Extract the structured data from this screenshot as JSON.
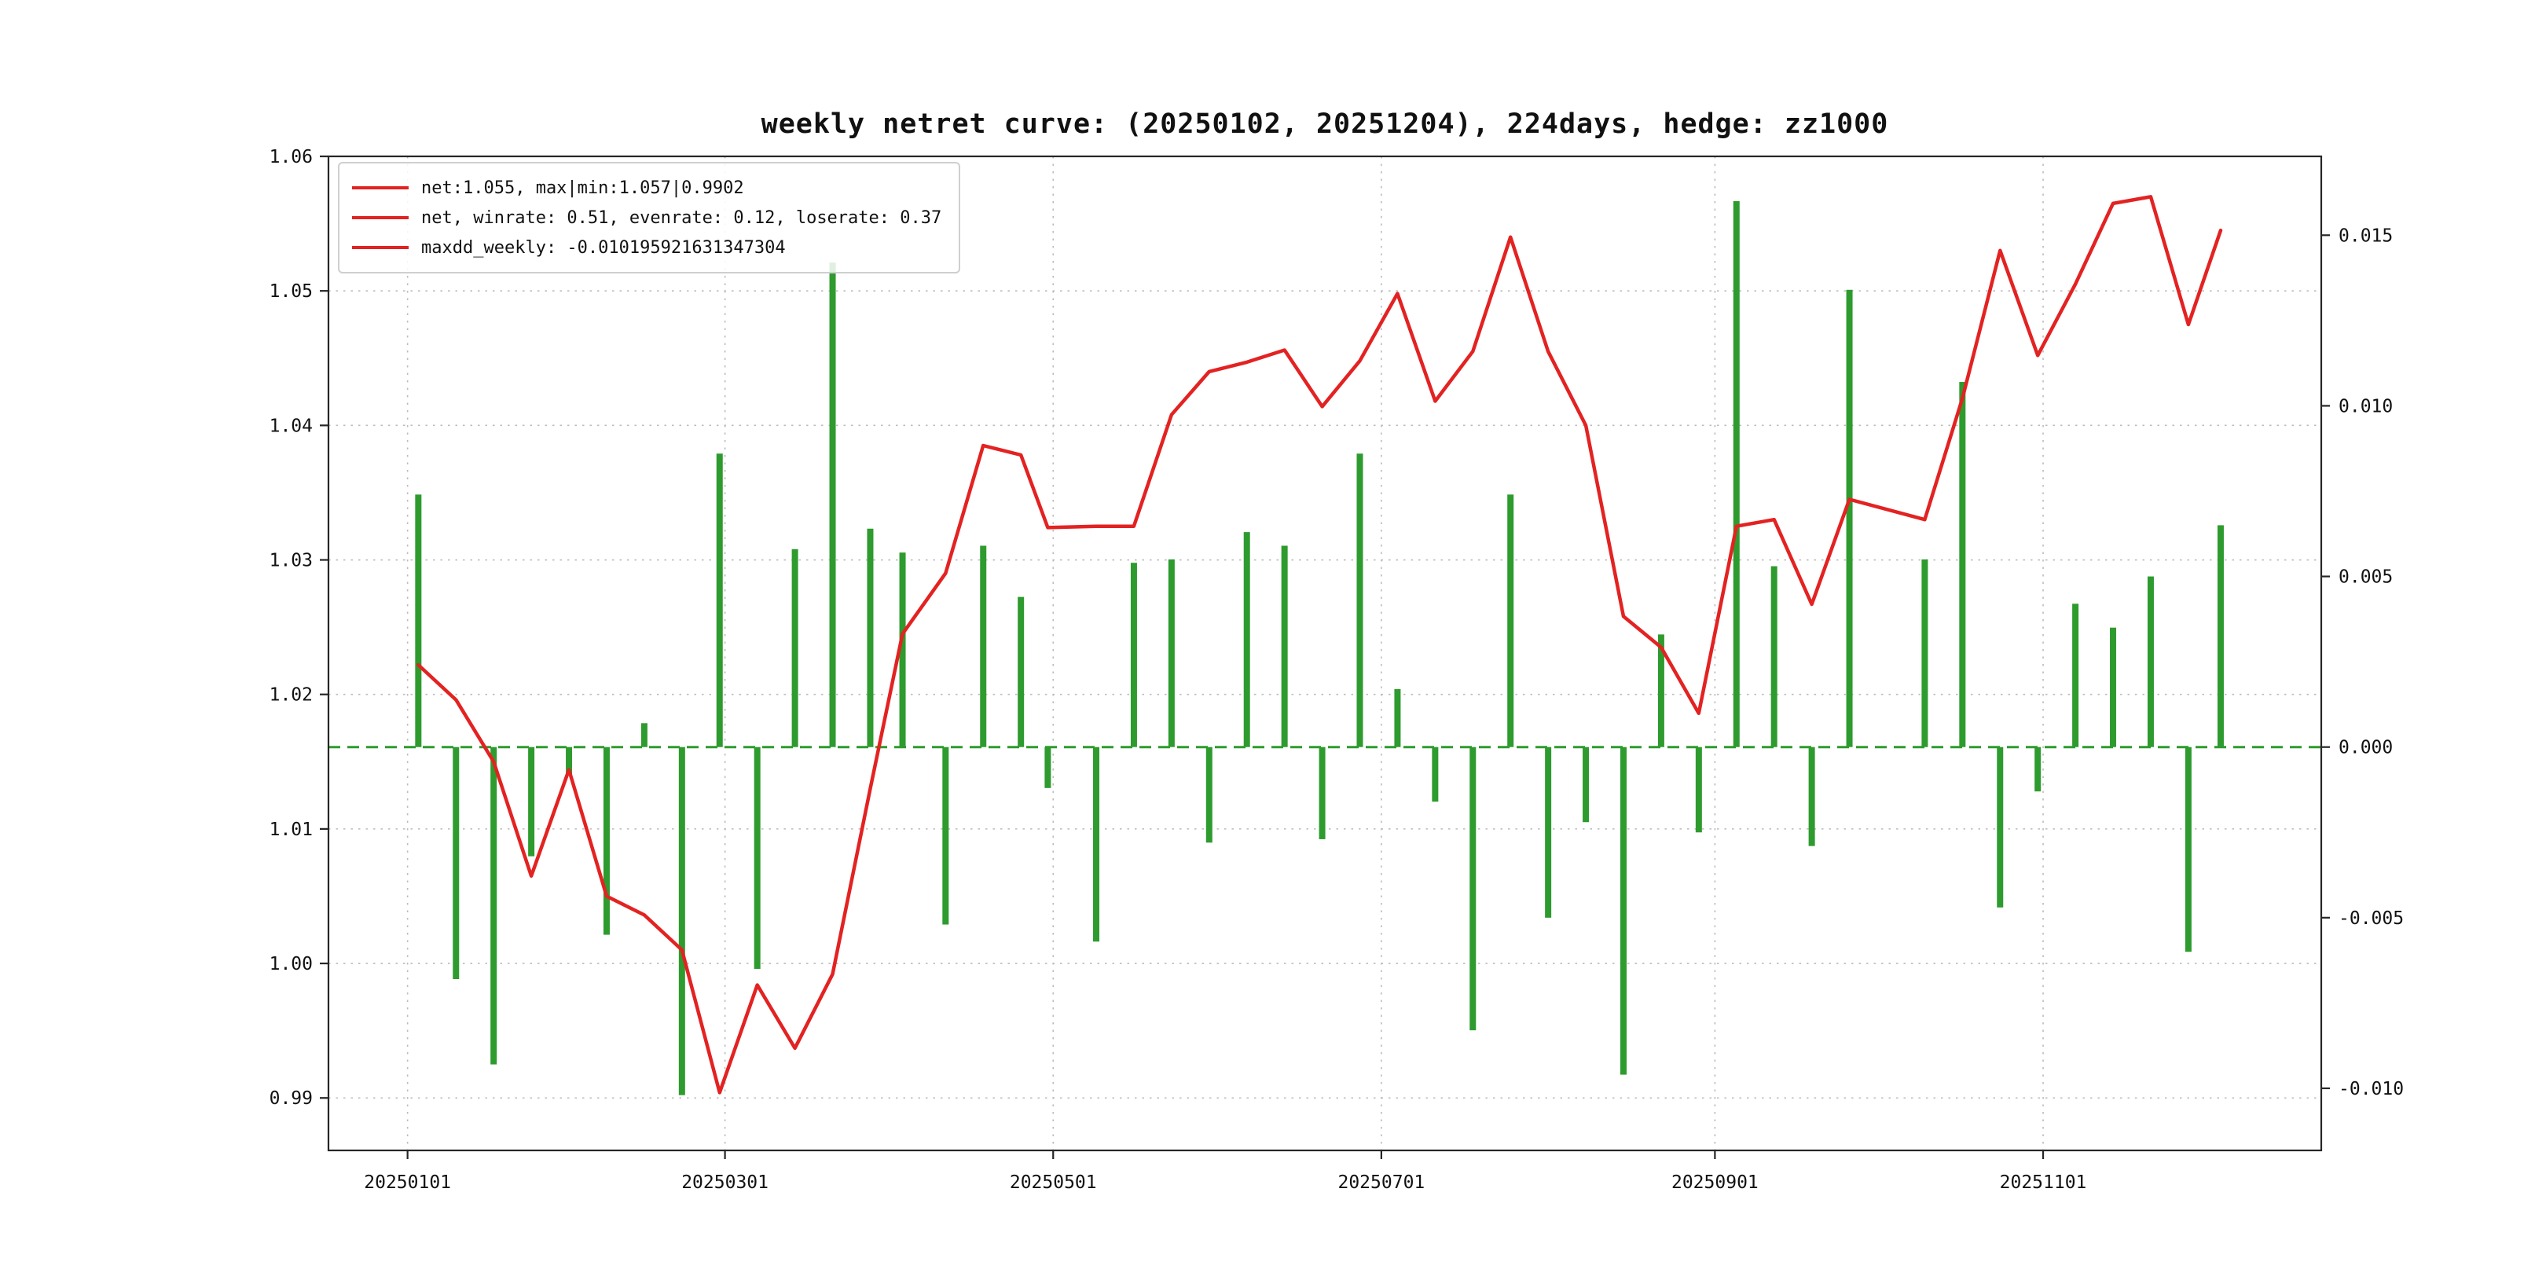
{
  "figure": {
    "title": "weekly netret curve: (20250102, 20251204), 224days, hedge: zz1000"
  },
  "legend": {
    "items": [
      {
        "label": "net:1.055, max|min:1.057|0.9902"
      },
      {
        "label": "net, winrate: 0.51, evenrate: 0.12, loserate: 0.37"
      },
      {
        "label": "maxdd_weekly: -0.010195921631347304"
      }
    ]
  },
  "colors": {
    "line": "#e32222",
    "bar": "#2e9b2e",
    "zero_line": "#2e9b2e",
    "grid": "#bbbbbb",
    "spine": "#262626"
  },
  "chart_data": {
    "type": "combo",
    "title": "weekly netret curve: (20250102, 20251204), 224days, hedge: zz1000",
    "x_origin": "20250101",
    "x_dates": [
      "20250103",
      "20250110",
      "20250117",
      "20250124",
      "20250131",
      "20250207",
      "20250214",
      "20250221",
      "20250228",
      "20250307",
      "20250314",
      "20250321",
      "20250328",
      "20250403",
      "20250411",
      "20250418",
      "20250425",
      "20250430",
      "20250509",
      "20250516",
      "20250523",
      "20250530",
      "20250606",
      "20250613",
      "20250620",
      "20250627",
      "20250704",
      "20250711",
      "20250718",
      "20250725",
      "20250801",
      "20250808",
      "20250815",
      "20250822",
      "20250829",
      "20250905",
      "20250912",
      "20250919",
      "20250926",
      "20251010",
      "20251017",
      "20251024",
      "20251031",
      "20251107",
      "20251114",
      "20251121",
      "20251128",
      "20251204"
    ],
    "series": [
      {
        "name": "net cumulative curve",
        "type": "line",
        "axis": "left",
        "values": [
          1.0222,
          1.0196,
          1.015,
          1.0065,
          1.0144,
          1.005,
          1.0036,
          1.001,
          0.9904,
          0.9984,
          0.9937,
          0.9992,
          1.013,
          1.0245,
          1.029,
          1.0385,
          1.0378,
          1.0324,
          1.0325,
          1.0325,
          1.0408,
          1.044,
          1.0447,
          1.0456,
          1.0414,
          1.0448,
          1.0498,
          1.0418,
          1.0455,
          1.054,
          1.0455,
          1.04,
          1.0258,
          1.0235,
          1.0186,
          1.0325,
          1.033,
          1.0267,
          1.0345,
          1.033,
          1.042,
          1.053,
          1.0452,
          1.0505,
          1.0565,
          1.057,
          1.0475,
          1.0545
        ]
      },
      {
        "name": "weekly net return",
        "type": "bar",
        "axis": "right",
        "values": [
          0.0074,
          -0.0068,
          -0.0093,
          -0.0032,
          -0.0008,
          -0.0055,
          0.0007,
          -0.0102,
          0.0086,
          -0.0065,
          0.0058,
          0.0142,
          0.0064,
          0.0057,
          -0.0052,
          0.0059,
          0.0044,
          -0.0012,
          -0.0057,
          0.0054,
          0.0055,
          -0.0028,
          0.0063,
          0.0059,
          -0.0027,
          0.0086,
          0.0017,
          -0.0016,
          -0.0083,
          0.0074,
          -0.005,
          -0.0022,
          -0.0096,
          0.0033,
          -0.0025,
          0.016,
          0.0053,
          -0.0029,
          0.0134,
          0.0055,
          0.0107,
          -0.0047,
          -0.0013,
          0.0042,
          0.0035,
          0.005,
          -0.006,
          0.0065
        ]
      }
    ],
    "left_axis": {
      "lim": [
        0.9861,
        1.06
      ],
      "ticks": [
        {
          "v": 0.99,
          "label": "0.99"
        },
        {
          "v": 1.0,
          "label": "1.00"
        },
        {
          "v": 1.01,
          "label": "1.01"
        },
        {
          "v": 1.02,
          "label": "1.02"
        },
        {
          "v": 1.03,
          "label": "1.03"
        },
        {
          "v": 1.04,
          "label": "1.04"
        },
        {
          "v": 1.05,
          "label": "1.05"
        },
        {
          "v": 1.06,
          "label": "1.06"
        }
      ]
    },
    "right_axis": {
      "lim": [
        -0.01182,
        0.01731
      ],
      "ticks": [
        {
          "v": -0.01,
          "label": "-0.010"
        },
        {
          "v": -0.005,
          "label": "-0.005"
        },
        {
          "v": 0.0,
          "label": "0.000"
        },
        {
          "v": 0.005,
          "label": "0.005"
        },
        {
          "v": 0.01,
          "label": "0.010"
        },
        {
          "v": 0.015,
          "label": "0.015"
        }
      ]
    },
    "x_axis": {
      "lim_days": [
        -14.7,
        355.7
      ],
      "ticks": [
        {
          "date": "20250101",
          "label": "20250101"
        },
        {
          "date": "20250301",
          "label": "20250301"
        },
        {
          "date": "20250501",
          "label": "20250501"
        },
        {
          "date": "20250701",
          "label": "20250701"
        },
        {
          "date": "20250901",
          "label": "20250901"
        },
        {
          "date": "20251101",
          "label": "20251101"
        }
      ]
    },
    "zero_line": {
      "value": 0.0,
      "axis": "right",
      "style": "dashed"
    },
    "grid": true,
    "legend_position": "upper-left"
  }
}
